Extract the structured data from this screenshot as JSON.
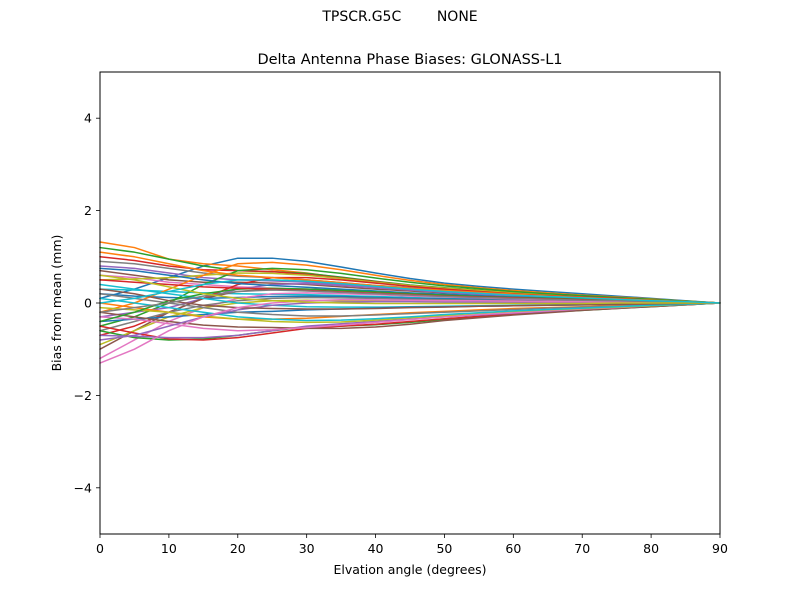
{
  "figure": {
    "suptitle": "TPSCR.G5C        NONE"
  },
  "chart_data": {
    "type": "line",
    "title": "Delta Antenna Phase Biases: GLONASS-L1",
    "xlabel": "Elvation angle (degrees)",
    "ylabel": "Bias from mean (mm)",
    "xlim": [
      0,
      90
    ],
    "ylim": [
      -5,
      5
    ],
    "xticks": [
      0,
      10,
      20,
      30,
      40,
      50,
      60,
      70,
      80,
      90
    ],
    "yticks": [
      -4,
      -2,
      0,
      2,
      4
    ],
    "ytick_labels": [
      "−4",
      "−2",
      "0",
      "2",
      "4"
    ],
    "grid": false,
    "legend": "none",
    "x": [
      0,
      5,
      10,
      15,
      20,
      25,
      30,
      35,
      40,
      45,
      50,
      55,
      60,
      65,
      70,
      75,
      80,
      85,
      90
    ],
    "series": [
      {
        "color": "#1f77b4",
        "values": [
          0.1,
          0.3,
          0.55,
          0.8,
          0.97,
          0.97,
          0.9,
          0.78,
          0.65,
          0.53,
          0.43,
          0.36,
          0.3,
          0.25,
          0.2,
          0.15,
          0.1,
          0.05,
          0.0
        ]
      },
      {
        "color": "#ff7f0e",
        "values": [
          1.32,
          1.2,
          0.95,
          0.85,
          0.8,
          0.72,
          0.65,
          0.55,
          0.46,
          0.38,
          0.32,
          0.27,
          0.22,
          0.18,
          0.14,
          0.1,
          0.07,
          0.04,
          0.0
        ]
      },
      {
        "color": "#2ca02c",
        "values": [
          1.2,
          1.1,
          0.95,
          0.8,
          0.7,
          0.68,
          0.64,
          0.56,
          0.47,
          0.39,
          0.33,
          0.28,
          0.23,
          0.19,
          0.15,
          0.11,
          0.07,
          0.04,
          0.0
        ]
      },
      {
        "color": "#d62728",
        "values": [
          1.0,
          0.92,
          0.8,
          0.72,
          0.7,
          0.68,
          0.62,
          0.54,
          0.46,
          0.38,
          0.32,
          0.27,
          0.22,
          0.18,
          0.14,
          0.1,
          0.07,
          0.03,
          0.0
        ]
      },
      {
        "color": "#9467bd",
        "values": [
          0.8,
          0.75,
          0.65,
          0.55,
          0.5,
          0.48,
          0.45,
          0.4,
          0.35,
          0.3,
          0.26,
          0.22,
          0.18,
          0.15,
          0.12,
          0.09,
          0.06,
          0.03,
          0.0
        ]
      },
      {
        "color": "#8c564b",
        "values": [
          0.7,
          0.6,
          0.5,
          0.45,
          0.45,
          0.43,
          0.4,
          0.35,
          0.3,
          0.26,
          0.22,
          0.19,
          0.16,
          0.13,
          0.1,
          0.08,
          0.05,
          0.03,
          0.0
        ]
      },
      {
        "color": "#e377c2",
        "values": [
          0.6,
          0.55,
          0.45,
          0.4,
          0.35,
          0.32,
          0.3,
          0.27,
          0.24,
          0.21,
          0.18,
          0.15,
          0.13,
          0.11,
          0.09,
          0.07,
          0.05,
          0.02,
          0.0
        ]
      },
      {
        "color": "#7f7f7f",
        "values": [
          0.9,
          0.85,
          0.75,
          0.65,
          0.58,
          0.55,
          0.5,
          0.44,
          0.38,
          0.33,
          0.28,
          0.24,
          0.2,
          0.16,
          0.13,
          0.1,
          0.06,
          0.03,
          0.0
        ]
      },
      {
        "color": "#bcbd22",
        "values": [
          0.5,
          0.52,
          0.55,
          0.6,
          0.65,
          0.64,
          0.6,
          0.53,
          0.45,
          0.38,
          0.32,
          0.27,
          0.22,
          0.18,
          0.14,
          0.1,
          0.07,
          0.03,
          0.0
        ]
      },
      {
        "color": "#17becf",
        "values": [
          0.3,
          0.28,
          0.25,
          0.22,
          0.2,
          0.19,
          0.18,
          0.16,
          0.14,
          0.12,
          0.1,
          0.09,
          0.08,
          0.06,
          0.05,
          0.04,
          0.03,
          0.01,
          0.0
        ]
      },
      {
        "color": "#1f77b4",
        "values": [
          0.2,
          0.15,
          0.12,
          0.1,
          0.12,
          0.14,
          0.15,
          0.14,
          0.12,
          0.1,
          0.09,
          0.08,
          0.07,
          0.06,
          0.05,
          0.04,
          0.03,
          0.01,
          0.0
        ]
      },
      {
        "color": "#ff7f0e",
        "values": [
          -0.2,
          0.0,
          0.3,
          0.6,
          0.85,
          0.88,
          0.82,
          0.72,
          0.6,
          0.49,
          0.4,
          0.33,
          0.27,
          0.22,
          0.17,
          0.13,
          0.09,
          0.04,
          0.0
        ]
      },
      {
        "color": "#2ca02c",
        "values": [
          -0.5,
          -0.3,
          0.0,
          0.4,
          0.7,
          0.75,
          0.72,
          0.64,
          0.54,
          0.45,
          0.37,
          0.31,
          0.25,
          0.2,
          0.16,
          0.12,
          0.08,
          0.04,
          0.0
        ]
      },
      {
        "color": "#d62728",
        "values": [
          -0.7,
          -0.5,
          -0.2,
          0.1,
          0.4,
          0.55,
          0.55,
          0.5,
          0.43,
          0.36,
          0.3,
          0.25,
          0.2,
          0.16,
          0.13,
          0.1,
          0.06,
          0.03,
          0.0
        ]
      },
      {
        "color": "#9467bd",
        "values": [
          -0.3,
          -0.2,
          -0.1,
          0.1,
          0.3,
          0.4,
          0.42,
          0.38,
          0.33,
          0.28,
          0.23,
          0.19,
          0.16,
          0.13,
          0.1,
          0.08,
          0.05,
          0.02,
          0.0
        ]
      },
      {
        "color": "#8c564b",
        "values": [
          -1.0,
          -0.6,
          -0.2,
          0.1,
          0.25,
          0.3,
          0.3,
          0.28,
          0.25,
          0.21,
          0.18,
          0.15,
          0.12,
          0.1,
          0.08,
          0.06,
          0.04,
          0.02,
          0.0
        ]
      },
      {
        "color": "#e377c2",
        "values": [
          -1.2,
          -0.8,
          -0.4,
          -0.1,
          0.1,
          0.2,
          0.22,
          0.2,
          0.18,
          0.15,
          0.13,
          0.11,
          0.09,
          0.07,
          0.06,
          0.04,
          0.03,
          0.01,
          0.0
        ]
      },
      {
        "color": "#7f7f7f",
        "values": [
          -0.6,
          -0.4,
          -0.2,
          -0.05,
          0.05,
          0.1,
          0.12,
          0.11,
          0.1,
          0.08,
          0.07,
          0.06,
          0.05,
          0.04,
          0.03,
          0.02,
          0.02,
          0.01,
          0.0
        ]
      },
      {
        "color": "#bcbd22",
        "values": [
          -0.9,
          -0.6,
          -0.3,
          -0.1,
          0.0,
          0.05,
          0.06,
          0.05,
          0.04,
          0.04,
          0.03,
          0.03,
          0.02,
          0.02,
          0.01,
          0.01,
          0.01,
          0.0,
          0.0
        ]
      },
      {
        "color": "#17becf",
        "values": [
          0.4,
          0.3,
          0.2,
          0.1,
          0.0,
          -0.05,
          -0.08,
          -0.09,
          -0.09,
          -0.08,
          -0.07,
          -0.06,
          -0.05,
          -0.04,
          -0.03,
          -0.02,
          -0.02,
          -0.01,
          0.0
        ]
      },
      {
        "color": "#1f77b4",
        "values": [
          -0.4,
          -0.35,
          -0.3,
          -0.25,
          -0.2,
          -0.18,
          -0.15,
          -0.13,
          -0.11,
          -0.09,
          -0.08,
          -0.07,
          -0.06,
          -0.05,
          -0.04,
          -0.03,
          -0.02,
          -0.01,
          0.0
        ]
      },
      {
        "color": "#ff7f0e",
        "values": [
          0.0,
          -0.1,
          -0.2,
          -0.3,
          -0.35,
          -0.35,
          -0.33,
          -0.29,
          -0.25,
          -0.21,
          -0.18,
          -0.15,
          -0.12,
          -0.1,
          -0.08,
          -0.06,
          -0.04,
          -0.02,
          0.0
        ]
      },
      {
        "color": "#2ca02c",
        "values": [
          -0.6,
          -0.75,
          -0.8,
          -0.78,
          -0.7,
          -0.6,
          -0.52,
          -0.5,
          -0.47,
          -0.42,
          -0.36,
          -0.3,
          -0.25,
          -0.2,
          -0.16,
          -0.12,
          -0.08,
          -0.04,
          0.0
        ]
      },
      {
        "color": "#d62728",
        "values": [
          -0.5,
          -0.65,
          -0.78,
          -0.8,
          -0.75,
          -0.65,
          -0.55,
          -0.5,
          -0.46,
          -0.4,
          -0.34,
          -0.29,
          -0.24,
          -0.19,
          -0.15,
          -0.11,
          -0.07,
          -0.04,
          0.0
        ]
      },
      {
        "color": "#9467bd",
        "values": [
          -0.7,
          -0.72,
          -0.75,
          -0.75,
          -0.7,
          -0.6,
          -0.5,
          -0.45,
          -0.4,
          -0.35,
          -0.3,
          -0.26,
          -0.22,
          -0.18,
          -0.14,
          -0.1,
          -0.07,
          -0.03,
          0.0
        ]
      },
      {
        "color": "#8c564b",
        "values": [
          -0.2,
          -0.3,
          -0.4,
          -0.48,
          -0.52,
          -0.53,
          -0.55,
          -0.55,
          -0.52,
          -0.46,
          -0.38,
          -0.32,
          -0.26,
          -0.21,
          -0.16,
          -0.12,
          -0.08,
          -0.04,
          0.0
        ]
      },
      {
        "color": "#e377c2",
        "values": [
          -0.3,
          -0.35,
          -0.45,
          -0.55,
          -0.6,
          -0.58,
          -0.53,
          -0.48,
          -0.42,
          -0.36,
          -0.3,
          -0.25,
          -0.21,
          -0.17,
          -0.13,
          -0.1,
          -0.06,
          -0.03,
          0.0
        ]
      },
      {
        "color": "#7f7f7f",
        "values": [
          0.2,
          0.1,
          0.0,
          -0.1,
          -0.2,
          -0.25,
          -0.28,
          -0.28,
          -0.26,
          -0.23,
          -0.2,
          -0.17,
          -0.14,
          -0.11,
          -0.09,
          -0.07,
          -0.04,
          -0.02,
          0.0
        ]
      },
      {
        "color": "#bcbd22",
        "values": [
          -0.1,
          -0.15,
          -0.2,
          -0.28,
          -0.35,
          -0.4,
          -0.42,
          -0.41,
          -0.37,
          -0.32,
          -0.27,
          -0.22,
          -0.18,
          -0.15,
          -0.12,
          -0.09,
          -0.06,
          -0.03,
          0.0
        ]
      },
      {
        "color": "#17becf",
        "values": [
          0.1,
          0.0,
          -0.1,
          -0.2,
          -0.3,
          -0.35,
          -0.38,
          -0.37,
          -0.34,
          -0.3,
          -0.25,
          -0.21,
          -0.17,
          -0.14,
          -0.11,
          -0.08,
          -0.05,
          -0.03,
          0.0
        ]
      },
      {
        "color": "#1f77b4",
        "values": [
          0.75,
          0.7,
          0.6,
          0.5,
          0.42,
          0.38,
          0.34,
          0.3,
          0.26,
          0.22,
          0.19,
          0.16,
          0.13,
          0.11,
          0.09,
          0.07,
          0.04,
          0.02,
          0.0
        ]
      },
      {
        "color": "#ff7f0e",
        "values": [
          1.1,
          1.0,
          0.85,
          0.7,
          0.6,
          0.55,
          0.5,
          0.44,
          0.38,
          0.32,
          0.27,
          0.23,
          0.19,
          0.15,
          0.12,
          0.09,
          0.06,
          0.03,
          0.0
        ]
      },
      {
        "color": "#2ca02c",
        "values": [
          -0.4,
          -0.2,
          0.05,
          0.2,
          0.3,
          0.32,
          0.3,
          0.27,
          0.24,
          0.2,
          0.17,
          0.14,
          0.12,
          0.1,
          0.08,
          0.06,
          0.04,
          0.02,
          0.0
        ]
      },
      {
        "color": "#d62728",
        "values": [
          0.5,
          0.45,
          0.4,
          0.35,
          0.32,
          0.3,
          0.27,
          0.24,
          0.21,
          0.18,
          0.15,
          0.13,
          0.11,
          0.09,
          0.07,
          0.05,
          0.03,
          0.02,
          0.0
        ]
      },
      {
        "color": "#9467bd",
        "values": [
          -0.8,
          -0.7,
          -0.5,
          -0.3,
          -0.15,
          -0.05,
          0.0,
          0.02,
          0.03,
          0.03,
          0.02,
          0.02,
          0.02,
          0.01,
          0.01,
          0.01,
          0.0,
          0.0,
          0.0
        ]
      },
      {
        "color": "#8c564b",
        "values": [
          0.3,
          0.2,
          0.05,
          -0.05,
          -0.1,
          -0.12,
          -0.13,
          -0.13,
          -0.12,
          -0.1,
          -0.09,
          -0.07,
          -0.06,
          -0.05,
          -0.04,
          -0.03,
          -0.02,
          -0.01,
          0.0
        ]
      },
      {
        "color": "#e377c2",
        "values": [
          -1.3,
          -1.0,
          -0.6,
          -0.3,
          -0.1,
          0.0,
          0.05,
          0.07,
          0.07,
          0.06,
          0.05,
          0.05,
          0.04,
          0.03,
          0.03,
          0.02,
          0.01,
          0.01,
          0.0
        ]
      },
      {
        "color": "#7f7f7f",
        "values": [
          -0.2,
          -0.1,
          0.0,
          0.15,
          0.25,
          0.28,
          0.26,
          0.23,
          0.2,
          0.17,
          0.14,
          0.12,
          0.1,
          0.08,
          0.06,
          0.05,
          0.03,
          0.02,
          0.0
        ]
      },
      {
        "color": "#bcbd22",
        "values": [
          0.6,
          0.5,
          0.35,
          0.2,
          0.1,
          0.05,
          0.02,
          0.0,
          -0.01,
          -0.01,
          -0.01,
          -0.01,
          -0.01,
          -0.01,
          -0.01,
          0.0,
          0.0,
          0.0,
          0.0
        ]
      },
      {
        "color": "#17becf",
        "values": [
          0.0,
          0.1,
          0.25,
          0.4,
          0.5,
          0.5,
          0.47,
          0.42,
          0.36,
          0.3,
          0.25,
          0.21,
          0.17,
          0.14,
          0.11,
          0.08,
          0.05,
          0.03,
          0.0
        ]
      }
    ]
  }
}
